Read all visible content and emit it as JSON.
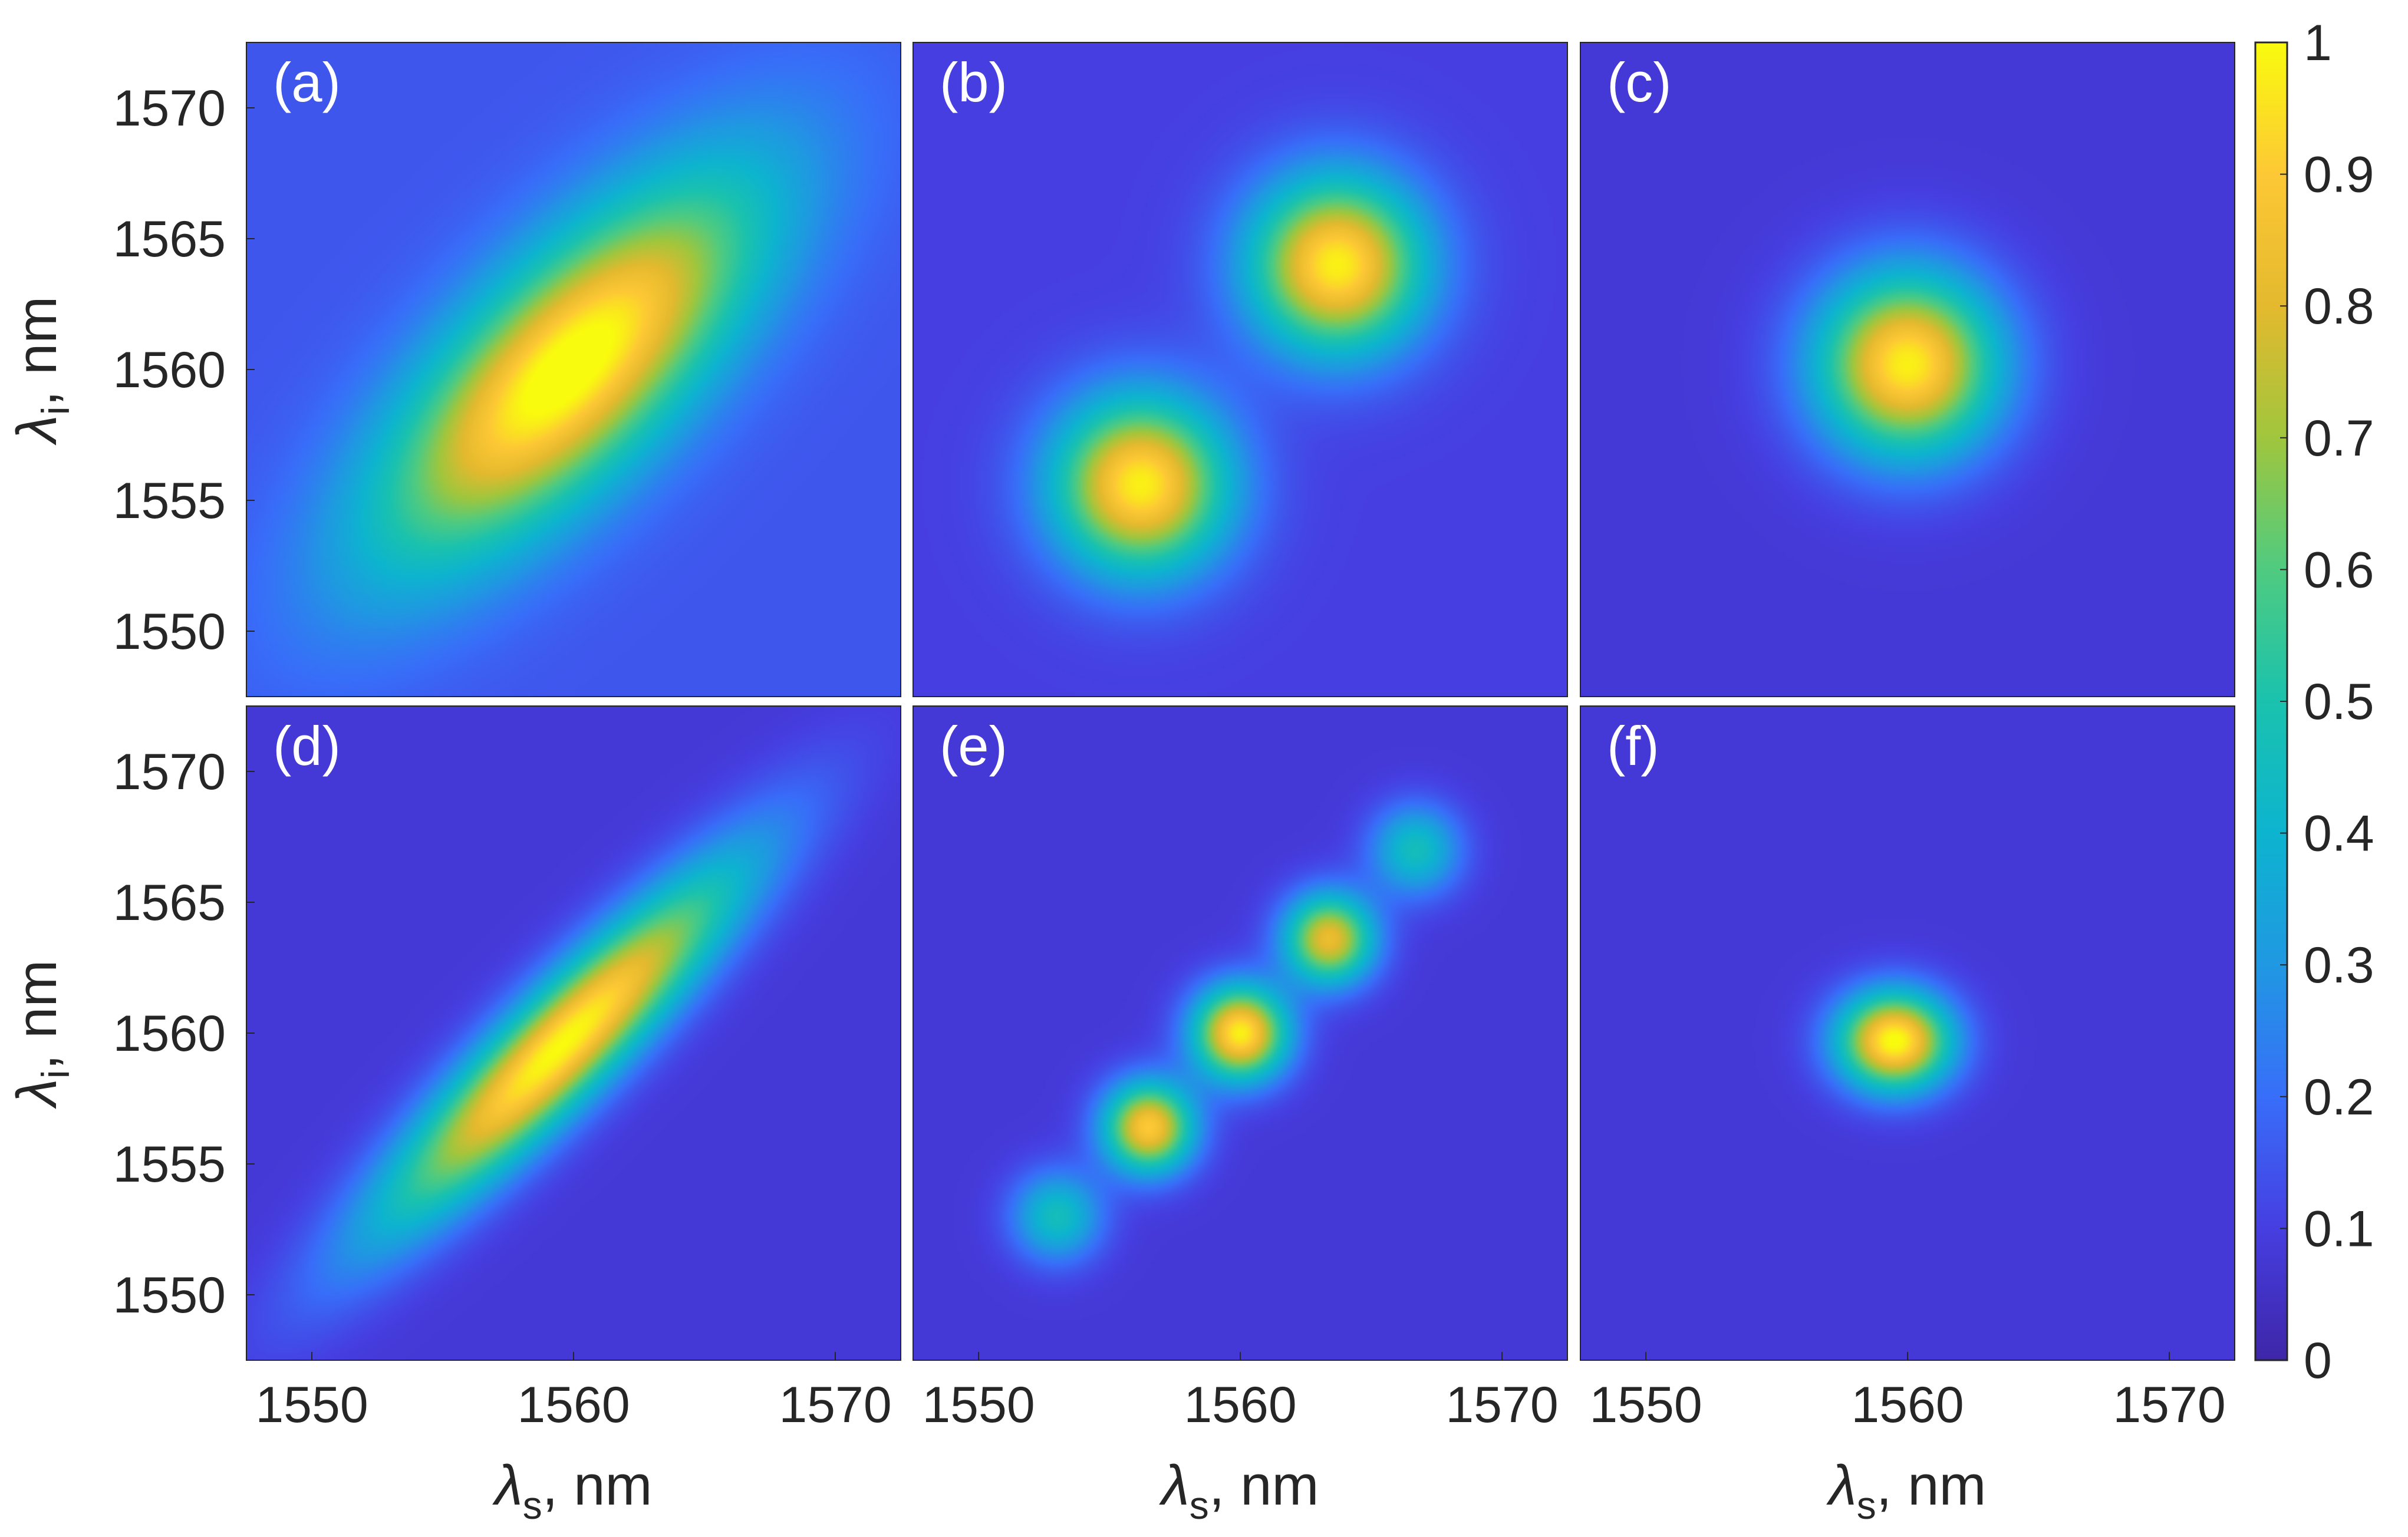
{
  "chart_data": {
    "type": "heatmap",
    "colormap": "parula",
    "colorbar": {
      "range": [
        0,
        1
      ],
      "ticks": [
        "0",
        "0.1",
        "0.2",
        "0.3",
        "0.4",
        "0.5",
        "0.6",
        "0.7",
        "0.8",
        "0.9",
        "1"
      ]
    },
    "x_axis": {
      "label_symbol": "λ",
      "label_subscript": "s",
      "label_unit": ", nm",
      "ticks": [
        1550,
        1560,
        1570
      ],
      "tick_labels": [
        "1550",
        "1560",
        "1570"
      ],
      "range": [
        1547.5,
        1572.5
      ]
    },
    "y_axis": {
      "label_symbol": "λ",
      "label_subscript": "i",
      "label_unit": ", nm",
      "ticks": [
        1550,
        1555,
        1560,
        1565,
        1570
      ],
      "tick_labels": [
        "1550",
        "1555",
        "1560",
        "1565",
        "1570"
      ],
      "range": [
        1547.5,
        1572.5
      ]
    },
    "panels": [
      {
        "label": "(a)",
        "background": 0.15,
        "peaks": [
          {
            "x": 1559.8,
            "y": 1560.0,
            "amp": 0.9,
            "sigma_major": 6.5,
            "sigma_minor": 2.6,
            "angle_deg": 45
          }
        ]
      },
      {
        "label": "(b)",
        "background": 0.1,
        "peaks": [
          {
            "x": 1556.2,
            "y": 1555.6,
            "amp": 0.88,
            "sigma_major": 2.3,
            "sigma_minor": 2.3,
            "angle_deg": 0
          },
          {
            "x": 1563.7,
            "y": 1564.0,
            "amp": 0.88,
            "sigma_major": 2.3,
            "sigma_minor": 2.3,
            "angle_deg": 0
          }
        ]
      },
      {
        "label": "(c)",
        "background": 0.08,
        "peaks": [
          {
            "x": 1560.0,
            "y": 1560.2,
            "amp": 0.9,
            "sigma_major": 2.4,
            "sigma_minor": 2.4,
            "angle_deg": 0
          }
        ]
      },
      {
        "label": "(d)",
        "background": 0.08,
        "peaks": [
          {
            "x": 1559.5,
            "y": 1559.5,
            "amp": 0.92,
            "sigma_major": 6.5,
            "sigma_minor": 1.4,
            "angle_deg": 45
          }
        ]
      },
      {
        "label": "(e)",
        "background": 0.08,
        "peaks": [
          {
            "x": 1553.0,
            "y": 1553.0,
            "amp": 0.38,
            "sigma_major": 1.2,
            "sigma_minor": 1.2,
            "angle_deg": 0
          },
          {
            "x": 1556.5,
            "y": 1556.4,
            "amp": 0.82,
            "sigma_major": 1.2,
            "sigma_minor": 1.2,
            "angle_deg": 0
          },
          {
            "x": 1560.0,
            "y": 1560.0,
            "amp": 0.9,
            "sigma_major": 1.25,
            "sigma_minor": 1.25,
            "angle_deg": 0
          },
          {
            "x": 1563.4,
            "y": 1563.6,
            "amp": 0.75,
            "sigma_major": 1.2,
            "sigma_minor": 1.2,
            "angle_deg": 0
          },
          {
            "x": 1566.7,
            "y": 1567.0,
            "amp": 0.38,
            "sigma_major": 1.2,
            "sigma_minor": 1.2,
            "angle_deg": 0
          }
        ]
      },
      {
        "label": "(f)",
        "background": 0.08,
        "peaks": [
          {
            "x": 1559.5,
            "y": 1559.7,
            "amp": 0.93,
            "sigma_major": 1.5,
            "sigma_minor": 1.3,
            "angle_deg": 0
          }
        ]
      }
    ]
  }
}
